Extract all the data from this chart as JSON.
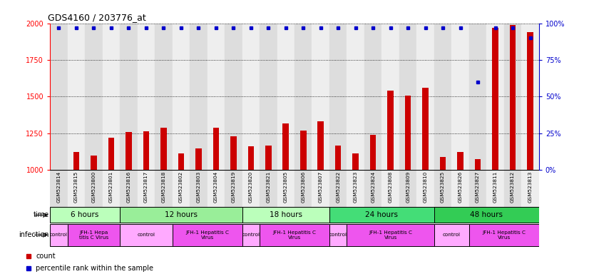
{
  "title": "GDS4160 / 203776_at",
  "samples": [
    "GSM523814",
    "GSM523815",
    "GSM523800",
    "GSM523801",
    "GSM523816",
    "GSM523817",
    "GSM523818",
    "GSM523802",
    "GSM523803",
    "GSM523804",
    "GSM523819",
    "GSM523820",
    "GSM523821",
    "GSM523805",
    "GSM523806",
    "GSM523807",
    "GSM523822",
    "GSM523823",
    "GSM523824",
    "GSM523808",
    "GSM523809",
    "GSM523810",
    "GSM523825",
    "GSM523826",
    "GSM523827",
    "GSM523811",
    "GSM523812",
    "GSM523813"
  ],
  "counts": [
    1002,
    1120,
    1100,
    1220,
    1260,
    1265,
    1290,
    1110,
    1145,
    1290,
    1230,
    1160,
    1165,
    1315,
    1270,
    1330,
    1165,
    1110,
    1240,
    1540,
    1505,
    1560,
    1090,
    1120,
    1075,
    1970,
    1990,
    1940
  ],
  "percentiles": [
    97,
    97,
    97,
    97,
    97,
    97,
    97,
    97,
    97,
    97,
    97,
    97,
    97,
    97,
    97,
    97,
    97,
    97,
    97,
    97,
    97,
    97,
    97,
    97,
    60,
    97,
    97,
    90
  ],
  "ylim_left": [
    1000,
    2000
  ],
  "ylim_right": [
    0,
    100
  ],
  "yticks_left": [
    1000,
    1250,
    1500,
    1750,
    2000
  ],
  "yticks_right": [
    0,
    25,
    50,
    75,
    100
  ],
  "bar_color": "#cc0000",
  "dot_color": "#0000cc",
  "time_groups": [
    {
      "label": "6 hours",
      "start": 0,
      "end": 4,
      "color": "#bbffbb"
    },
    {
      "label": "12 hours",
      "start": 4,
      "end": 11,
      "color": "#99ee99"
    },
    {
      "label": "18 hours",
      "start": 11,
      "end": 16,
      "color": "#bbffbb"
    },
    {
      "label": "24 hours",
      "start": 16,
      "end": 22,
      "color": "#44dd77"
    },
    {
      "label": "48 hours",
      "start": 22,
      "end": 28,
      "color": "#33cc55"
    }
  ],
  "infection_groups": [
    {
      "label": "control",
      "start": 0,
      "end": 1,
      "color": "#ffaaff"
    },
    {
      "label": "JFH-1 Hepa\ntitis C Virus",
      "start": 1,
      "end": 4,
      "color": "#ee55ee"
    },
    {
      "label": "control",
      "start": 4,
      "end": 7,
      "color": "#ffaaff"
    },
    {
      "label": "JFH-1 Hepatitis C\nVirus",
      "start": 7,
      "end": 11,
      "color": "#ee55ee"
    },
    {
      "label": "control",
      "start": 11,
      "end": 12,
      "color": "#ffaaff"
    },
    {
      "label": "JFH-1 Hepatitis C\nVirus",
      "start": 12,
      "end": 16,
      "color": "#ee55ee"
    },
    {
      "label": "control",
      "start": 16,
      "end": 17,
      "color": "#ffaaff"
    },
    {
      "label": "JFH-1 Hepatitis C\nVirus",
      "start": 17,
      "end": 22,
      "color": "#ee55ee"
    },
    {
      "label": "control",
      "start": 22,
      "end": 24,
      "color": "#ffaaff"
    },
    {
      "label": "JFH-1 Hepatitis C\nVirus",
      "start": 24,
      "end": 28,
      "color": "#ee55ee"
    }
  ],
  "legend_count_color": "#cc0000",
  "legend_percentile_color": "#0000cc",
  "bg_color": "#ffffff",
  "col_bg_even": "#dddddd",
  "col_bg_odd": "#eeeeee"
}
